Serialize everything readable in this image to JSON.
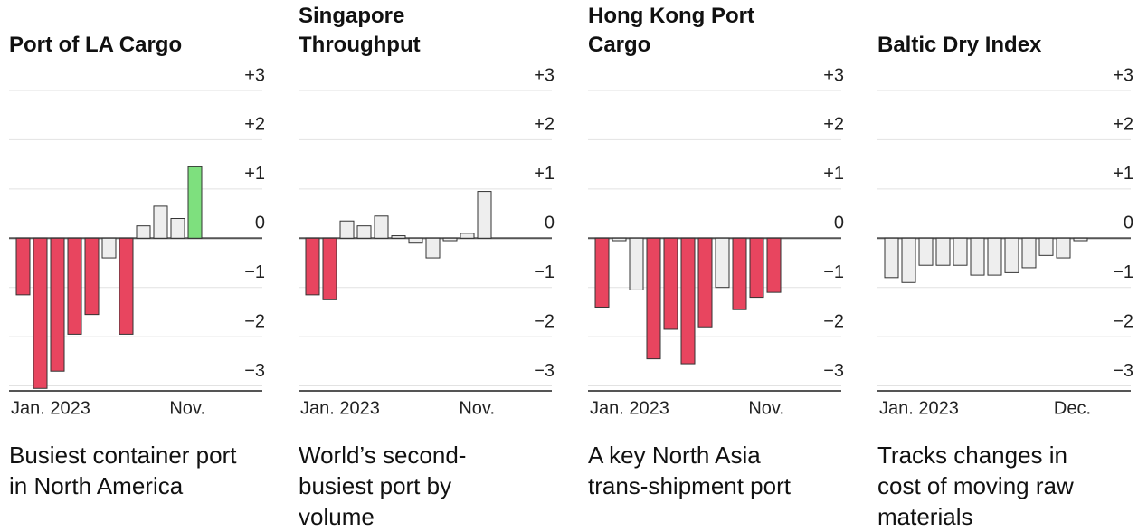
{
  "chart_data": [
    {
      "type": "bar",
      "title": "Port of LA Cargo",
      "subtitle": "Busiest container port in North America",
      "categories": [
        "Jan. 2023",
        null,
        null,
        null,
        null,
        null,
        null,
        null,
        null,
        null,
        "Nov."
      ],
      "values": [
        -1.15,
        -3.05,
        -2.7,
        -1.95,
        -1.55,
        -0.4,
        -1.95,
        0.25,
        0.65,
        0.4,
        1.45
      ],
      "colors": [
        "#e8455f",
        "#e8455f",
        "#e8455f",
        "#e8455f",
        "#e8455f",
        "#eeeeee",
        "#e8455f",
        "#eeeeee",
        "#eeeeee",
        "#eeeeee",
        "#7ee07e"
      ],
      "ylim": [
        -3.1,
        3
      ],
      "yticks": [
        {
          "value": 3,
          "label": "+3"
        },
        {
          "value": 2,
          "label": "+2"
        },
        {
          "value": 1,
          "label": "+1"
        },
        0,
        {
          "value": -1,
          "label": "−1"
        },
        {
          "value": -2,
          "label": "−2"
        },
        {
          "value": -3,
          "label": "−3"
        }
      ],
      "grid": true
    },
    {
      "type": "bar",
      "title": "Singapore Throughput",
      "subtitle": "World’s second-busiest port by volume",
      "categories": [
        "Jan. 2023",
        null,
        null,
        null,
        null,
        null,
        null,
        null,
        null,
        null,
        "Nov."
      ],
      "values": [
        -1.15,
        -1.25,
        0.35,
        0.25,
        0.45,
        0.05,
        -0.1,
        -0.4,
        -0.05,
        0.1,
        0.95
      ],
      "colors": [
        "#e8455f",
        "#e8455f",
        "#eeeeee",
        "#eeeeee",
        "#eeeeee",
        "#eeeeee",
        "#eeeeee",
        "#eeeeee",
        "#eeeeee",
        "#eeeeee",
        "#eeeeee"
      ],
      "ylim": [
        -3.1,
        3
      ],
      "yticks": [
        {
          "value": 3,
          "label": "+3"
        },
        {
          "value": 2,
          "label": "+2"
        },
        {
          "value": 1,
          "label": "+1"
        },
        0,
        {
          "value": -1,
          "label": "−1"
        },
        {
          "value": -2,
          "label": "−2"
        },
        {
          "value": -3,
          "label": "−3"
        }
      ],
      "grid": true
    },
    {
      "type": "bar",
      "title": "Hong Kong Port Cargo",
      "subtitle": "A key North Asia trans-shipment port",
      "categories": [
        "Jan. 2023",
        null,
        null,
        null,
        null,
        null,
        null,
        null,
        null,
        null,
        "Nov."
      ],
      "values": [
        -1.4,
        -0.05,
        -1.05,
        -2.45,
        -1.85,
        -2.55,
        -1.8,
        -1.0,
        -1.45,
        -1.2,
        -1.1
      ],
      "colors": [
        "#e8455f",
        "#eeeeee",
        "#eeeeee",
        "#e8455f",
        "#e8455f",
        "#e8455f",
        "#e8455f",
        "#eeeeee",
        "#e8455f",
        "#e8455f",
        "#e8455f"
      ],
      "ylim": [
        -3.1,
        3
      ],
      "yticks": [
        {
          "value": 3,
          "label": "+3"
        },
        {
          "value": 2,
          "label": "+2"
        },
        {
          "value": 1,
          "label": "+1"
        },
        0,
        {
          "value": -1,
          "label": "−1"
        },
        {
          "value": -2,
          "label": "−2"
        },
        {
          "value": -3,
          "label": "−3"
        }
      ],
      "grid": true
    },
    {
      "type": "bar",
      "title": "Baltic Dry Index",
      "subtitle": "Tracks changes in cost of moving raw materials",
      "categories": [
        "Jan. 2023",
        null,
        null,
        null,
        null,
        null,
        null,
        null,
        null,
        null,
        null,
        "Dec."
      ],
      "values": [
        -0.8,
        -0.9,
        -0.55,
        -0.55,
        -0.55,
        -0.75,
        -0.75,
        -0.7,
        -0.6,
        -0.35,
        -0.4,
        -0.05
      ],
      "colors": [
        "#eeeeee",
        "#eeeeee",
        "#eeeeee",
        "#eeeeee",
        "#eeeeee",
        "#eeeeee",
        "#eeeeee",
        "#eeeeee",
        "#eeeeee",
        "#eeeeee",
        "#eeeeee",
        "#eeeeee"
      ],
      "ylim": [
        -3.1,
        3
      ],
      "yticks": [
        {
          "value": 3,
          "label": "+3"
        },
        {
          "value": 2,
          "label": "+2"
        },
        {
          "value": 1,
          "label": "+1"
        },
        0,
        {
          "value": -1,
          "label": "−1"
        },
        {
          "value": -2,
          "label": "−2"
        },
        {
          "value": -3,
          "label": "−3"
        }
      ],
      "grid": true
    }
  ]
}
